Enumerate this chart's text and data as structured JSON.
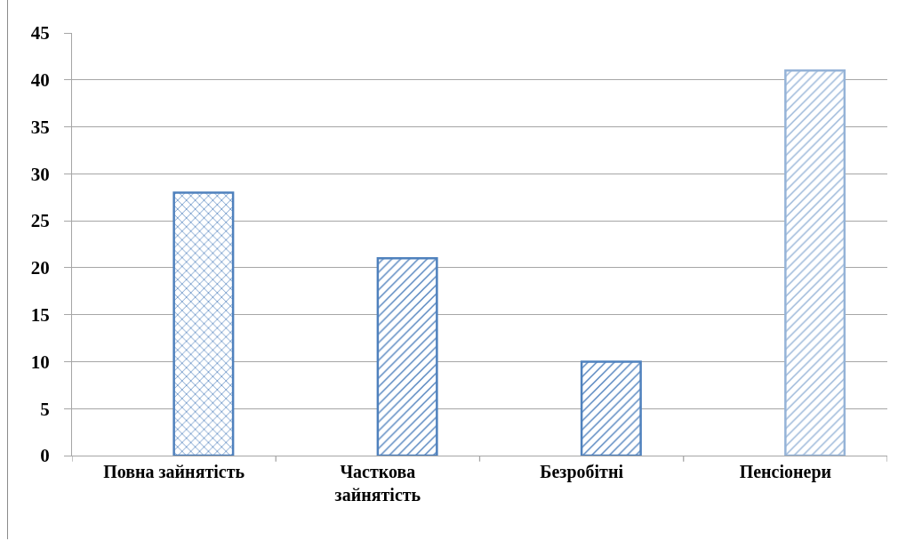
{
  "chart_data": {
    "type": "bar",
    "categories": [
      "Повна зайнятість",
      "Часткова\nзайнятість",
      "Безробітні",
      "Пенсіонери"
    ],
    "values": [
      28,
      21,
      10,
      41
    ],
    "colors": [
      "#4f81bd",
      "#4f81bd",
      "#4f81bd",
      "#95b3d7"
    ],
    "ylim": [
      0,
      45
    ],
    "yticks": [
      0,
      5,
      10,
      15,
      20,
      25,
      30,
      35,
      40,
      45
    ],
    "grid": "y"
  }
}
